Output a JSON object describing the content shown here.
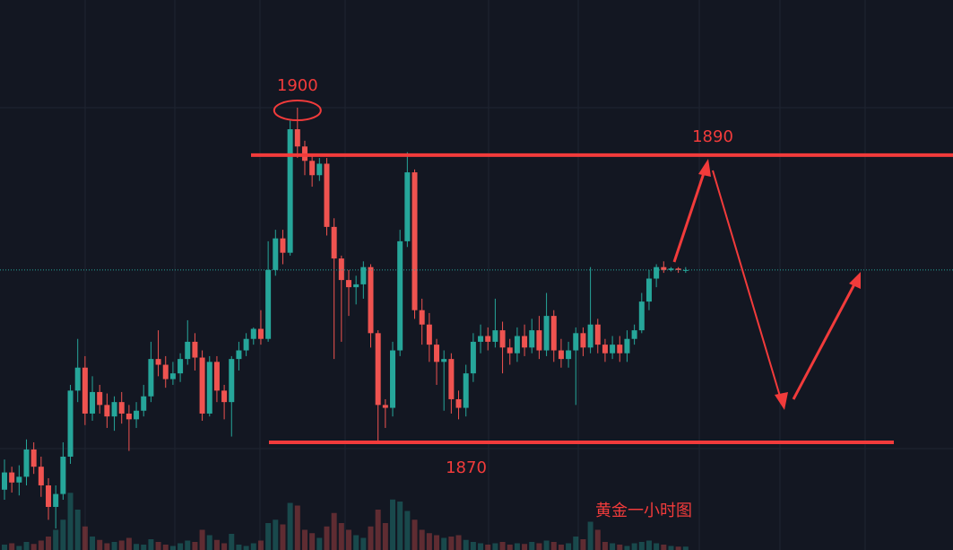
{
  "chart_data": {
    "type": "candlestick",
    "title": "黄金一小时图",
    "up_color": "#26a69a",
    "down_color": "#ef5350",
    "ylim": [
      1862.5,
      1900.8
    ],
    "volume_lim": [
      0,
      100
    ],
    "price_line": 1882,
    "peak_label": 1900,
    "levels": [
      1890,
      1870
    ],
    "open": [
      1866.7,
      1867.9,
      1867.2,
      1867.6,
      1869.5,
      1868.3,
      1867.0,
      1865.5,
      1866.4,
      1869.0,
      1873.6,
      1875.2,
      1872.0,
      1873.5,
      1872.6,
      1871.8,
      1872.8,
      1872.0,
      1871.6,
      1872.2,
      1873.2,
      1875.8,
      1875.4,
      1874.4,
      1874.8,
      1875.8,
      1877.0,
      1875.9,
      1872.0,
      1875.6,
      1873.6,
      1872.8,
      1875.8,
      1876.4,
      1877.2,
      1877.9,
      1877.2,
      1882.0,
      1884.2,
      1883.2,
      1891.8,
      1890.6,
      1889.6,
      1888.6,
      1889.4,
      1885.0,
      1882.8,
      1881.3,
      1880.8,
      1881.0,
      1882.2,
      1877.6,
      1872.6,
      1872.4,
      1876.4,
      1884.0,
      1888.8,
      1879.2,
      1878.2,
      1876.8,
      1875.6,
      1875.8,
      1873.0,
      1872.4,
      1874.8,
      1877.0,
      1877.4,
      1877.0,
      1877.8,
      1876.6,
      1876.2,
      1877.4,
      1876.6,
      1877.8,
      1876.4,
      1878.8,
      1876.4,
      1875.8,
      1876.4,
      1877.6,
      1876.6,
      1878.2,
      1876.8,
      1876.2,
      1876.8,
      1876.2,
      1877.2,
      1877.8,
      1879.8,
      1881.4,
      1882.2,
      1882.0,
      1882.1,
      1882.0
    ],
    "high": [
      1868.8,
      1868.3,
      1868.4,
      1870.2,
      1870.0,
      1869.0,
      1867.5,
      1867.0,
      1870.0,
      1874.0,
      1877.2,
      1876.0,
      1874.6,
      1874.0,
      1873.4,
      1873.2,
      1873.5,
      1872.6,
      1872.8,
      1874.0,
      1877.0,
      1877.8,
      1876.0,
      1875.6,
      1876.2,
      1878.5,
      1877.6,
      1876.4,
      1876.0,
      1876.0,
      1874.0,
      1876.0,
      1877.0,
      1877.6,
      1878.0,
      1879.2,
      1884.0,
      1884.8,
      1884.8,
      1892.4,
      1893.3,
      1891.0,
      1890.0,
      1889.8,
      1889.8,
      1885.6,
      1883.0,
      1882.0,
      1881.6,
      1882.6,
      1882.4,
      1877.8,
      1873.0,
      1877.0,
      1884.8,
      1890.2,
      1889.0,
      1880.0,
      1879.0,
      1877.2,
      1876.4,
      1876.2,
      1873.6,
      1875.4,
      1877.6,
      1878.2,
      1878.0,
      1880.0,
      1878.4,
      1877.2,
      1878.0,
      1878.2,
      1878.6,
      1878.8,
      1880.4,
      1879.2,
      1877.2,
      1877.0,
      1878.0,
      1878.0,
      1882.2,
      1878.6,
      1877.2,
      1877.4,
      1877.4,
      1877.8,
      1878.2,
      1880.4,
      1882.0,
      1882.4,
      1882.6,
      1882.2,
      1882.2,
      1882.2
    ],
    "low": [
      1866.0,
      1866.5,
      1866.3,
      1867.0,
      1867.8,
      1866.2,
      1864.6,
      1864.0,
      1866.0,
      1868.5,
      1872.8,
      1871.2,
      1871.5,
      1872.0,
      1871.0,
      1870.8,
      1871.3,
      1869.4,
      1871.0,
      1871.8,
      1872.8,
      1874.6,
      1873.8,
      1874.0,
      1874.2,
      1875.4,
      1875.0,
      1871.5,
      1871.8,
      1872.8,
      1871.6,
      1870.4,
      1875.0,
      1876.0,
      1876.8,
      1876.8,
      1877.0,
      1881.6,
      1882.4,
      1883.0,
      1889.8,
      1888.6,
      1887.8,
      1888.2,
      1884.4,
      1875.8,
      1877.0,
      1878.8,
      1879.6,
      1880.0,
      1876.6,
      1870.0,
      1871.0,
      1871.8,
      1876.0,
      1883.6,
      1878.6,
      1876.8,
      1875.6,
      1874.0,
      1872.2,
      1872.0,
      1871.6,
      1871.8,
      1874.2,
      1876.2,
      1876.4,
      1876.6,
      1874.8,
      1875.4,
      1875.6,
      1876.0,
      1876.2,
      1875.8,
      1876.0,
      1875.6,
      1875.2,
      1875.2,
      1872.6,
      1876.0,
      1876.2,
      1876.2,
      1875.6,
      1875.8,
      1875.6,
      1875.6,
      1876.8,
      1877.6,
      1879.2,
      1880.8,
      1881.8,
      1881.9,
      1881.8,
      1881.8
    ],
    "close": [
      1867.9,
      1867.2,
      1867.6,
      1869.5,
      1868.3,
      1867.0,
      1865.5,
      1866.4,
      1869.0,
      1873.6,
      1875.2,
      1872.0,
      1873.5,
      1872.6,
      1871.8,
      1872.8,
      1872.0,
      1871.6,
      1872.2,
      1873.2,
      1875.8,
      1875.4,
      1874.4,
      1874.8,
      1875.8,
      1877.0,
      1875.9,
      1872.0,
      1875.6,
      1873.6,
      1872.8,
      1875.8,
      1876.4,
      1877.2,
      1877.9,
      1877.2,
      1882.0,
      1884.2,
      1883.2,
      1891.8,
      1890.6,
      1889.6,
      1888.6,
      1889.4,
      1885.0,
      1882.8,
      1881.3,
      1880.8,
      1881.0,
      1882.2,
      1877.6,
      1872.6,
      1872.4,
      1876.4,
      1884.0,
      1888.8,
      1879.2,
      1878.2,
      1876.8,
      1875.6,
      1875.8,
      1873.0,
      1872.4,
      1874.8,
      1877.0,
      1877.4,
      1877.0,
      1877.8,
      1876.6,
      1876.2,
      1877.4,
      1876.6,
      1877.8,
      1876.4,
      1878.8,
      1876.4,
      1875.8,
      1876.4,
      1877.6,
      1876.6,
      1878.2,
      1876.8,
      1876.2,
      1876.8,
      1876.2,
      1877.2,
      1877.8,
      1879.8,
      1881.4,
      1882.2,
      1882.0,
      1882.1,
      1882.0,
      1882.0
    ],
    "volume": [
      8,
      10,
      6,
      12,
      9,
      14,
      20,
      30,
      45,
      85,
      60,
      35,
      20,
      15,
      10,
      12,
      14,
      18,
      9,
      8,
      16,
      12,
      8,
      6,
      10,
      14,
      12,
      30,
      22,
      15,
      10,
      24,
      8,
      6,
      10,
      14,
      40,
      45,
      38,
      70,
      66,
      30,
      25,
      18,
      35,
      55,
      40,
      30,
      22,
      18,
      35,
      60,
      40,
      75,
      72,
      58,
      45,
      30,
      25,
      22,
      18,
      20,
      22,
      15,
      12,
      10,
      8,
      10,
      12,
      8,
      10,
      9,
      12,
      10,
      14,
      12,
      8,
      10,
      20,
      16,
      42,
      30,
      12,
      10,
      8,
      6,
      10,
      12,
      14,
      10,
      8,
      6,
      5,
      5
    ]
  }
}
